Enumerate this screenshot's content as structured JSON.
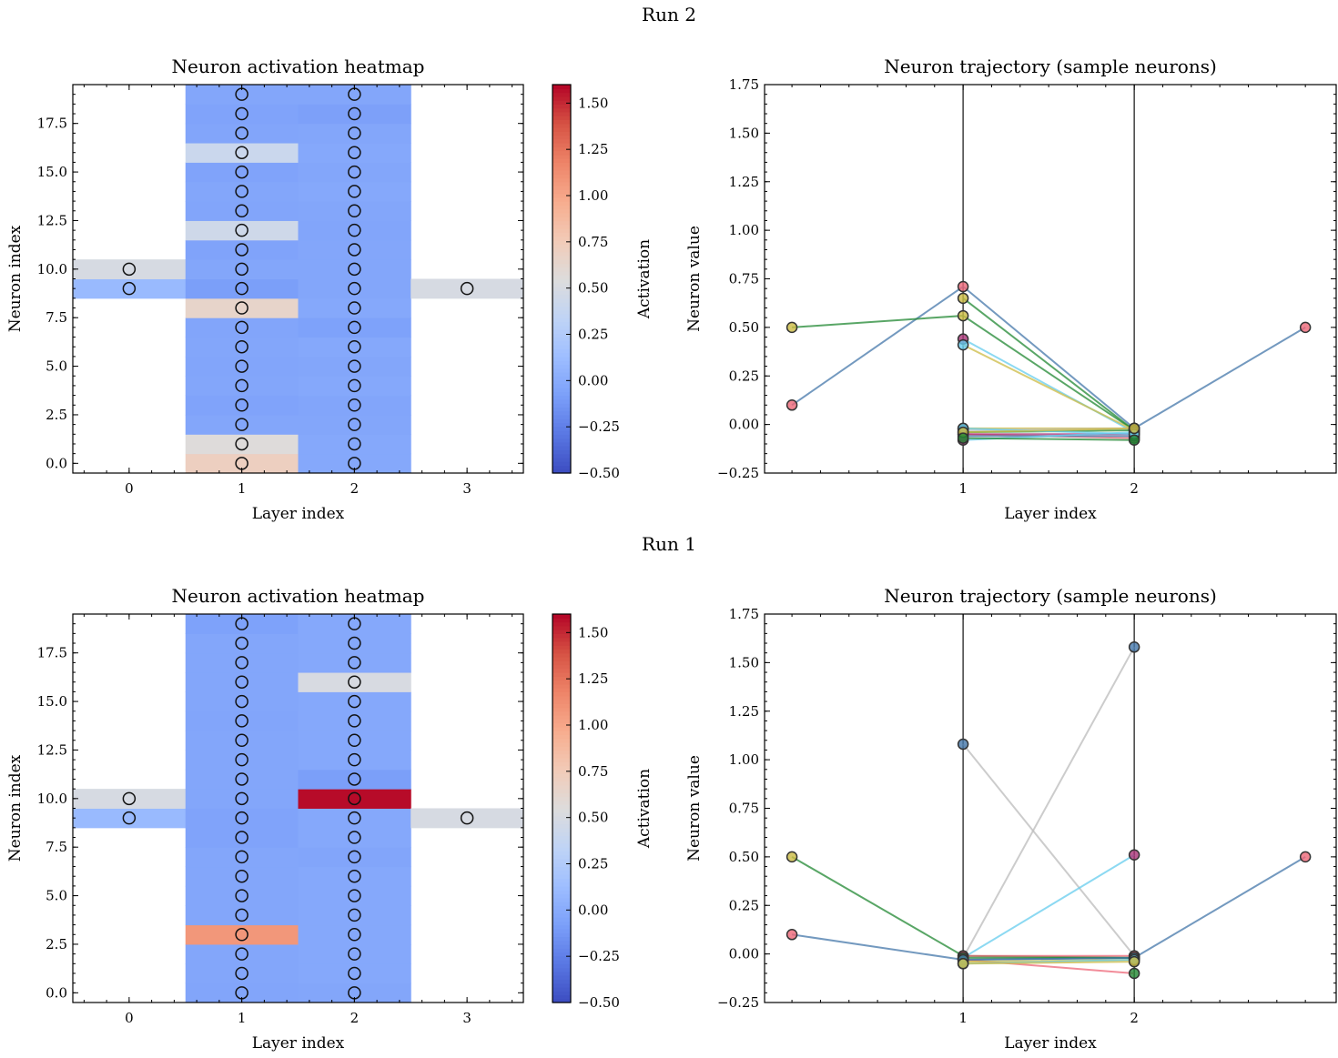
{
  "runs": [
    {
      "label": "Run 2",
      "heatmap": {
        "type": "heatmap",
        "title": "Neuron activation heatmap",
        "xlabel": "Layer index",
        "ylabel": "Neuron index",
        "x_ticks": [
          "0",
          "1",
          "2",
          "3"
        ],
        "y_tick_values": [
          0,
          2.5,
          5,
          7.5,
          10,
          12.5,
          15,
          17.5
        ],
        "y_ticks": [
          "0.0",
          "2.5",
          "5.0",
          "7.5",
          "10.0",
          "12.5",
          "15.0",
          "17.5"
        ],
        "colorbar": {
          "label": "Activation",
          "range": [
            -0.5,
            1.6
          ],
          "tick_values": [
            -0.5,
            -0.25,
            0,
            0.25,
            0.5,
            0.75,
            1.0,
            1.25,
            1.5
          ],
          "ticks": [
            "−0.50",
            "−0.25",
            "0.00",
            "0.25",
            "0.50",
            "0.75",
            "1.00",
            "1.25",
            "1.50"
          ]
        },
        "values": [
          [
            null,
            null,
            null,
            null,
            null,
            null,
            null,
            null,
            null,
            0.1,
            0.5,
            null,
            null,
            null,
            null,
            null,
            null,
            null,
            null,
            null
          ],
          [
            0.71,
            0.56,
            -0.03,
            -0.05,
            -0.03,
            -0.04,
            -0.03,
            -0.04,
            0.65,
            -0.08,
            -0.03,
            -0.05,
            0.44,
            -0.04,
            -0.03,
            -0.05,
            0.41,
            -0.04,
            -0.05,
            -0.03
          ],
          [
            -0.02,
            -0.02,
            -0.03,
            -0.04,
            -0.02,
            -0.03,
            -0.02,
            -0.06,
            -0.02,
            -0.03,
            -0.03,
            -0.03,
            -0.04,
            -0.03,
            -0.02,
            -0.03,
            -0.02,
            -0.03,
            -0.07,
            -0.03
          ],
          [
            null,
            null,
            null,
            null,
            null,
            null,
            null,
            null,
            null,
            0.5,
            null,
            null,
            null,
            null,
            null,
            null,
            null,
            null,
            null,
            null
          ]
        ]
      },
      "trajectory": {
        "type": "line",
        "title": "Neuron trajectory (sample neurons)",
        "xlabel": "Layer index",
        "ylabel": "Neuron value",
        "xlim": [
          -0.16,
          3.18
        ],
        "ylim": [
          -0.25,
          1.75
        ],
        "x_tick_values": [
          1,
          2
        ],
        "x_ticks": [
          "1",
          "2"
        ],
        "y_tick_values": [
          -0.25,
          0,
          0.25,
          0.5,
          0.75,
          1.0,
          1.25,
          1.5,
          1.75
        ],
        "y_ticks": [
          "−0.25",
          "0.00",
          "0.25",
          "0.50",
          "0.75",
          "1.00",
          "1.25",
          "1.50",
          "1.75"
        ],
        "vlines": [
          1,
          2
        ],
        "series": [
          {
            "color": "#4477aa",
            "points": [
              [
                0,
                0.1,
                "#ee6677"
              ],
              [
                1,
                0.71,
                "#ee6677"
              ],
              [
                2,
                -0.02,
                "#4477aa"
              ],
              [
                3,
                0.5,
                "#ee6677"
              ]
            ]
          },
          {
            "color": "#228833",
            "points": [
              [
                0,
                0.5,
                "#ccbb44"
              ],
              [
                1,
                0.56,
                "#ccbb44"
              ],
              [
                2,
                -0.03,
                "#228833"
              ]
            ]
          },
          {
            "color": "#228833",
            "points": [
              [
                1,
                0.65,
                "#ccbb44"
              ],
              [
                2,
                -0.03,
                "#228833"
              ]
            ]
          },
          {
            "color": "#66ccee",
            "points": [
              [
                1,
                0.44,
                "#aa3377"
              ],
              [
                2,
                -0.04,
                "#66ccee"
              ]
            ]
          },
          {
            "color": "#ccbb44",
            "points": [
              [
                1,
                0.41,
                "#66ccee"
              ],
              [
                2,
                -0.03,
                "#66ccee"
              ]
            ]
          },
          {
            "color": "#ccbb44",
            "points": [
              [
                1,
                -0.02,
                "#ccbb44"
              ],
              [
                2,
                -0.02,
                "#ccbb44"
              ]
            ]
          },
          {
            "color": "#bbbbbb",
            "points": [
              [
                1,
                -0.03,
                "#bbbbbb"
              ],
              [
                2,
                -0.02,
                "#bbbbbb"
              ]
            ]
          },
          {
            "color": "#228833",
            "points": [
              [
                1,
                -0.04,
                "#228833"
              ],
              [
                2,
                -0.03,
                "#228833"
              ]
            ]
          },
          {
            "color": "#ee6677",
            "points": [
              [
                1,
                -0.05,
                "#ee6677"
              ],
              [
                2,
                -0.07,
                "#ee6677"
              ]
            ]
          },
          {
            "color": "#aa3377",
            "points": [
              [
                1,
                -0.05,
                "#aa3377"
              ],
              [
                2,
                -0.05,
                "#aa3377"
              ]
            ]
          },
          {
            "color": "#4477aa",
            "points": [
              [
                1,
                -0.06,
                "#4477aa"
              ],
              [
                2,
                -0.06,
                "#4477aa"
              ]
            ]
          },
          {
            "color": "#66ccee",
            "points": [
              [
                1,
                -0.08,
                "#aa3377"
              ],
              [
                2,
                -0.04,
                "#66ccee"
              ]
            ]
          },
          {
            "color": "#66ccee",
            "points": [
              [
                1,
                -0.02,
                "#66ccee"
              ],
              [
                2,
                -0.05,
                "#66ccee"
              ]
            ]
          },
          {
            "color": "#ccbb44",
            "points": [
              [
                1,
                -0.04,
                "#ccbb44"
              ],
              [
                2,
                -0.02,
                "#ccbb44"
              ]
            ]
          },
          {
            "color": "#228833",
            "points": [
              [
                1,
                -0.07,
                "#228833"
              ],
              [
                2,
                -0.08,
                "#228833"
              ]
            ]
          }
        ]
      }
    },
    {
      "label": "Run 1",
      "heatmap": {
        "type": "heatmap",
        "title": "Neuron activation heatmap",
        "xlabel": "Layer index",
        "ylabel": "Neuron index",
        "x_ticks": [
          "0",
          "1",
          "2",
          "3"
        ],
        "y_tick_values": [
          0,
          2.5,
          5,
          7.5,
          10,
          12.5,
          15,
          17.5
        ],
        "y_ticks": [
          "0.0",
          "2.5",
          "5.0",
          "7.5",
          "10.0",
          "12.5",
          "15.0",
          "17.5"
        ],
        "colorbar": {
          "label": "Activation",
          "range": [
            -0.5,
            1.6
          ],
          "tick_values": [
            -0.5,
            -0.25,
            0,
            0.25,
            0.5,
            0.75,
            1.0,
            1.25,
            1.5
          ],
          "ticks": [
            "−0.50",
            "−0.25",
            "0.00",
            "0.25",
            "0.50",
            "0.75",
            "1.00",
            "1.25",
            "1.50"
          ]
        },
        "values": [
          [
            null,
            null,
            null,
            null,
            null,
            null,
            null,
            null,
            null,
            0.1,
            0.5,
            null,
            null,
            null,
            null,
            null,
            null,
            null,
            null,
            null
          ],
          [
            -0.04,
            -0.03,
            -0.03,
            1.08,
            -0.03,
            -0.03,
            -0.03,
            -0.03,
            -0.05,
            -0.05,
            -0.03,
            -0.03,
            -0.03,
            -0.03,
            -0.04,
            -0.03,
            -0.03,
            -0.03,
            -0.03,
            -0.06
          ],
          [
            -0.03,
            -0.02,
            -0.02,
            -0.02,
            -0.02,
            -0.02,
            -0.02,
            -0.04,
            -0.02,
            -0.02,
            1.58,
            -0.08,
            -0.02,
            -0.02,
            -0.02,
            -0.02,
            0.51,
            -0.02,
            -0.02,
            -0.02
          ],
          [
            null,
            null,
            null,
            null,
            null,
            null,
            null,
            null,
            null,
            0.5,
            null,
            null,
            null,
            null,
            null,
            null,
            null,
            null,
            null,
            null
          ]
        ]
      },
      "trajectory": {
        "type": "line",
        "title": "Neuron trajectory (sample neurons)",
        "xlabel": "Layer index",
        "ylabel": "Neuron value",
        "xlim": [
          -0.16,
          3.18
        ],
        "ylim": [
          -0.25,
          1.75
        ],
        "x_tick_values": [
          1,
          2
        ],
        "x_ticks": [
          "1",
          "2"
        ],
        "y_tick_values": [
          -0.25,
          0,
          0.25,
          0.5,
          0.75,
          1.0,
          1.25,
          1.5,
          1.75
        ],
        "y_ticks": [
          "−0.25",
          "0.00",
          "0.25",
          "0.50",
          "0.75",
          "1.00",
          "1.25",
          "1.50",
          "1.75"
        ],
        "vlines": [
          1,
          2
        ],
        "series": [
          {
            "color": "#4477aa",
            "points": [
              [
                0,
                0.1,
                "#ee6677"
              ],
              [
                1,
                -0.03,
                "#66ccee"
              ],
              [
                2,
                -0.02,
                "#4477aa"
              ],
              [
                3,
                0.5,
                "#ee6677"
              ]
            ]
          },
          {
            "color": "#228833",
            "points": [
              [
                0,
                0.5,
                "#ccbb44"
              ],
              [
                1,
                -0.01,
                "#228833"
              ],
              [
                2,
                -0.02,
                "#228833"
              ]
            ]
          },
          {
            "color": "#bbbbbb",
            "points": [
              [
                1,
                1.08,
                "#4477aa"
              ],
              [
                2,
                -0.01,
                "#bbbbbb"
              ]
            ]
          },
          {
            "color": "#bbbbbb",
            "points": [
              [
                1,
                -0.02,
                "#bbbbbb"
              ],
              [
                2,
                1.58,
                "#4477aa"
              ]
            ]
          },
          {
            "color": "#66ccee",
            "points": [
              [
                1,
                -0.02,
                "#66ccee"
              ],
              [
                2,
                0.51,
                "#aa3377"
              ]
            ]
          },
          {
            "color": "#ee6677",
            "points": [
              [
                1,
                -0.03,
                "#ee6677"
              ],
              [
                2,
                -0.1,
                "#228833"
              ]
            ]
          },
          {
            "color": "#ee6677",
            "points": [
              [
                1,
                -0.01,
                "#ee6677"
              ],
              [
                2,
                -0.01,
                "#ee6677"
              ]
            ]
          },
          {
            "color": "#ccbb44",
            "points": [
              [
                1,
                -0.04,
                "#ccbb44"
              ],
              [
                2,
                -0.03,
                "#ccbb44"
              ]
            ]
          },
          {
            "color": "#228833",
            "points": [
              [
                1,
                -0.02,
                "#228833"
              ],
              [
                2,
                -0.02,
                "#228833"
              ]
            ]
          },
          {
            "color": "#4477aa",
            "points": [
              [
                1,
                -0.03,
                "#4477aa"
              ],
              [
                2,
                -0.02,
                "#4477aa"
              ]
            ]
          },
          {
            "color": "#66ccee",
            "points": [
              [
                1,
                -0.05,
                "#66ccee"
              ],
              [
                2,
                -0.03,
                "#66ccee"
              ]
            ]
          },
          {
            "color": "#ccbb44",
            "points": [
              [
                1,
                -0.05,
                "#ccbb44"
              ],
              [
                2,
                -0.04,
                "#ccbb44"
              ]
            ]
          }
        ]
      }
    }
  ],
  "chart_data": []
}
